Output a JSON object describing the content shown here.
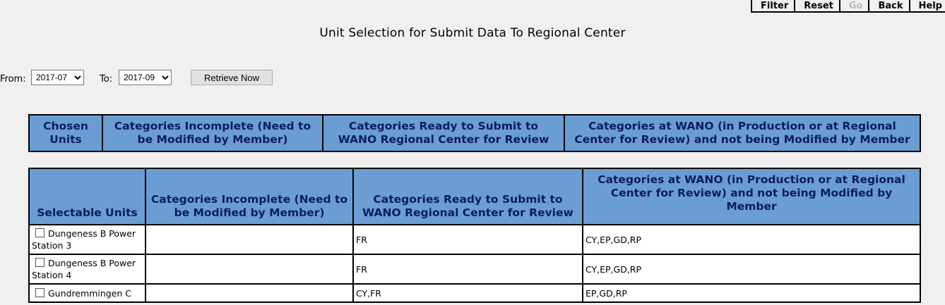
{
  "toolbar": {
    "filter": "Filter",
    "reset": "Reset",
    "go": "Go",
    "back": "Back",
    "help": "Help"
  },
  "title": "Unit Selection for Submit Data To Regional Center",
  "range": {
    "from_label": "From:",
    "from_value": "2017-07",
    "to_label": "To:",
    "to_value": "2017-09",
    "retrieve_label": "Retrieve Now"
  },
  "chosen_table": {
    "headers": [
      "Chosen Units",
      "Categories Incomplete (Need to be Modified by Member)",
      "Categories Ready to Submit to WANO Regional Center for Review",
      "Categories at WANO (in Production or at Regional Center for Review) and not being Modified by Member"
    ]
  },
  "units_table": {
    "headers": [
      "Selectable Units",
      "Categories Incomplete (Need to be Modified by Member)",
      "Categories Ready to Submit to WANO Regional Center for Review",
      "Categories at WANO (in Production or at Regional Center for Review) and not being Modified by Member"
    ],
    "rows": [
      {
        "unit": "Dungeness B Power Station 3",
        "incomplete": "",
        "ready": "FR",
        "at_wano": "CY,EP,GD,RP",
        "checked": false
      },
      {
        "unit": "Dungeness B Power Station 4",
        "incomplete": "",
        "ready": "FR",
        "at_wano": "CY,EP,GD,RP",
        "checked": false
      },
      {
        "unit": "Gundremmingen C",
        "incomplete": "",
        "ready": "CY,FR",
        "at_wano": "EP,GD,RP",
        "checked": false
      }
    ]
  }
}
